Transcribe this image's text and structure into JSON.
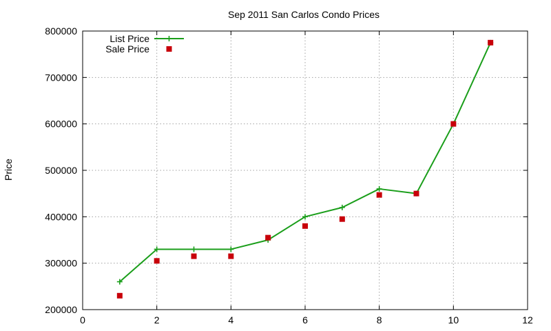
{
  "chart_data": {
    "type": "line",
    "title": "Sep 2011 San Carlos Condo Prices",
    "xlabel": "",
    "ylabel": "Price",
    "xlim": [
      0,
      12
    ],
    "ylim": [
      200000,
      800000
    ],
    "xticks": [
      0,
      2,
      4,
      6,
      8,
      10,
      12
    ],
    "yticks": [
      200000,
      300000,
      400000,
      500000,
      600000,
      700000,
      800000
    ],
    "grid": true,
    "legend_position": "top-left",
    "series": [
      {
        "name": "List Price",
        "style": "line+plus",
        "color": "#1a9e1a",
        "x": [
          1,
          2,
          3,
          4,
          5,
          6,
          7,
          8,
          9,
          10,
          11
        ],
        "y": [
          260000,
          330000,
          330000,
          330000,
          350000,
          400000,
          420000,
          460000,
          450000,
          600000,
          775000
        ]
      },
      {
        "name": "Sale Price",
        "style": "square",
        "color": "#c8000a",
        "x": [
          1,
          2,
          3,
          4,
          5,
          6,
          7,
          8,
          9,
          10,
          11
        ],
        "y": [
          230000,
          305000,
          315000,
          315000,
          355000,
          380000,
          395000,
          447000,
          450000,
          600000,
          775000
        ]
      }
    ]
  }
}
